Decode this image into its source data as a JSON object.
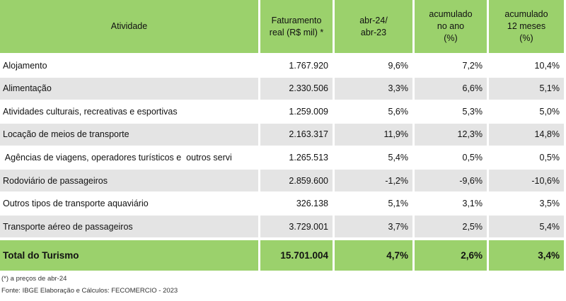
{
  "table": {
    "header": [
      [
        "Atividade"
      ],
      [
        "Faturamento",
        "real (R$ mil) *"
      ],
      [
        "abr-24/",
        "abr-23"
      ],
      [
        "acumulado",
        "no ano",
        "(%)"
      ],
      [
        "acumulado",
        "12 meses",
        "(%)"
      ]
    ],
    "rows": [
      [
        "Alojamento",
        "1.767.920",
        "9,6%",
        "7,2%",
        "10,4%"
      ],
      [
        "Alimentação",
        "2.330.506",
        "3,3%",
        "6,6%",
        "5,1%"
      ],
      [
        "Atividades culturais, recreativas e esportivas",
        "1.259.009",
        "5,6%",
        "5,3%",
        "5,0%"
      ],
      [
        "Locação de meios de transporte",
        "2.163.317",
        "11,9%",
        "12,3%",
        "14,8%"
      ],
      [
        " Agências de viagens, operadores turísticos e  outros servi",
        "1.265.513",
        "5,4%",
        "0,5%",
        "0,5%"
      ],
      [
        "Rodoviário de passageiros",
        "2.859.600",
        "-1,2%",
        "-9,6%",
        "-10,6%"
      ],
      [
        "Outros tipos de transporte aquaviário",
        "326.138",
        "5,1%",
        "3,1%",
        "3,5%"
      ],
      [
        "Transporte aéreo de passageiros",
        "3.729.001",
        "3,7%",
        "2,5%",
        "5,4%"
      ]
    ],
    "total": [
      "Total do Turismo",
      "15.701.004",
      "4,7%",
      "2,6%",
      "3,4%"
    ]
  },
  "notes": [
    "(*) a preços de abr-24",
    "Fonte: IBGE Elaboração e Cálculos: FECOMERCIO - 2023"
  ]
}
